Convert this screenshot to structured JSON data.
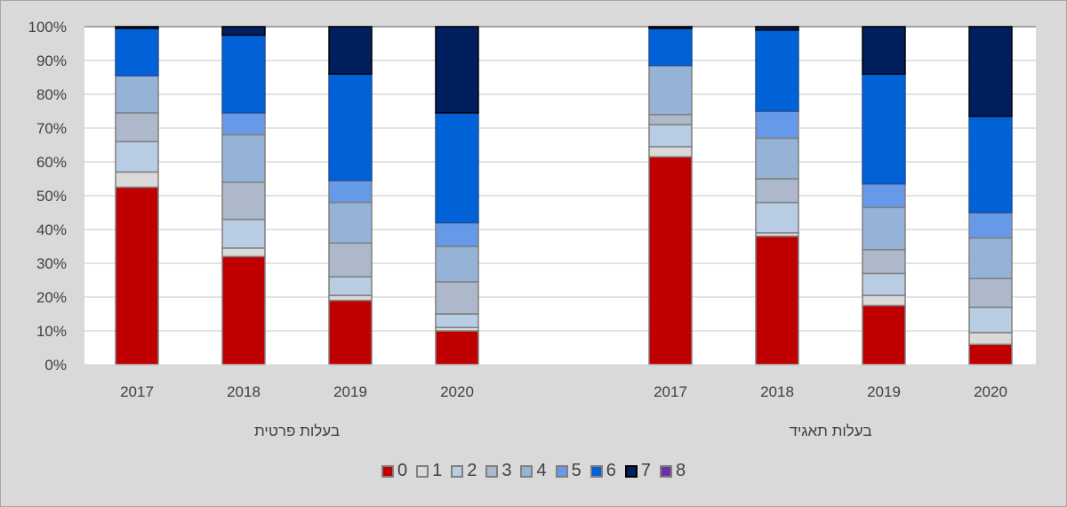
{
  "chart_data": {
    "type": "bar",
    "stacked": "percent",
    "yticks": [
      "0%",
      "10%",
      "20%",
      "30%",
      "40%",
      "50%",
      "60%",
      "70%",
      "80%",
      "90%",
      "100%"
    ],
    "ylim": [
      0,
      100
    ],
    "groups": [
      {
        "label": "בעלות פרטית",
        "categories": [
          "2017",
          "2018",
          "2019",
          "2020"
        ]
      },
      {
        "label": "בעלות תאגיד",
        "categories": [
          "2017",
          "2018",
          "2019",
          "2020"
        ]
      }
    ],
    "series": [
      {
        "name": "0",
        "color": "#C00000",
        "values": [
          52.5,
          32,
          19,
          10,
          61.5,
          38,
          17.5,
          6
        ]
      },
      {
        "name": "1",
        "color": "#D9D9D9",
        "values": [
          4.5,
          2.5,
          1.5,
          1,
          3,
          1,
          3,
          3.5
        ]
      },
      {
        "name": "2",
        "color": "#B8CCE4",
        "values": [
          9,
          8.5,
          5.5,
          4,
          6.5,
          9,
          6.5,
          7.5
        ]
      },
      {
        "name": "3",
        "color": "#ADB9CA",
        "values": [
          8.5,
          11,
          10,
          9.5,
          3,
          7,
          7,
          8.5
        ]
      },
      {
        "name": "4",
        "color": "#95B3D7",
        "values": [
          11,
          14,
          12,
          10.5,
          14.5,
          12,
          12.5,
          12
        ]
      },
      {
        "name": "5",
        "color": "#6699E8",
        "values": [
          0,
          6.5,
          6.5,
          7,
          0,
          8,
          7,
          7.5
        ]
      },
      {
        "name": "6",
        "color": "#0062D6",
        "values": [
          14,
          23,
          31.5,
          32.5,
          11,
          24,
          32.5,
          28.5
        ]
      },
      {
        "name": "7",
        "color": "#001F5F",
        "values": [
          0.5,
          2.5,
          14,
          25.5,
          0.5,
          1,
          14,
          26.5
        ]
      },
      {
        "name": "8",
        "color": "#7030A0",
        "values": [
          0,
          0,
          0,
          0,
          0,
          0,
          0,
          0
        ]
      }
    ],
    "legend": "bottom",
    "grid": true
  }
}
